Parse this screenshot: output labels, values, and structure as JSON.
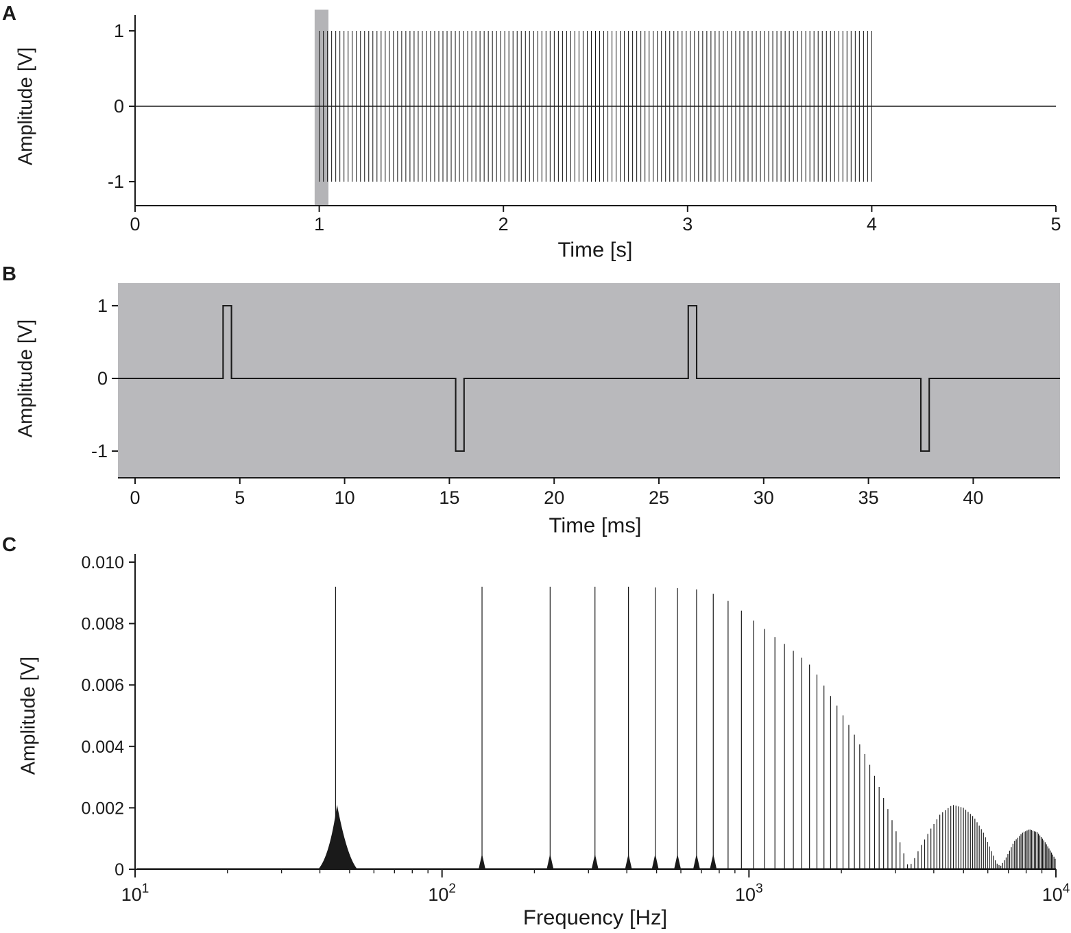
{
  "ink_color": "#1a1a1a",
  "chart_data": [
    {
      "panel_letter": "A",
      "type": "line",
      "xlabel": "Time [s]",
      "ylabel": "Amplitude [V]",
      "xlim": [
        0,
        5
      ],
      "ylim": [
        -1.15,
        1.15
      ],
      "xticks": [
        0,
        1,
        2,
        3,
        4,
        5
      ],
      "yticks": [
        1,
        0,
        -1
      ],
      "ytick_labels": [
        "1",
        "0",
        "-1"
      ],
      "series_description": "45 Hz biphasic pulse train, amplitude ±1 V, active from 1 s to 4 s, zero elsewhere; gray band marks zoom region shown in panel B",
      "pulse_train": {
        "onset_s": 1.0,
        "offset_s": 4.0,
        "rate_hz": 45,
        "amplitude_v": 1.0,
        "n_cycles": 135
      },
      "highlight_band_s": [
        0.975,
        1.05
      ],
      "highlight_color": "#b4b4b7"
    },
    {
      "panel_letter": "B",
      "type": "line",
      "xlabel": "Time [ms]",
      "ylabel": "Amplitude [V]",
      "xlim": [
        -0.8,
        44.2
      ],
      "ylim": [
        -1.3,
        1.3
      ],
      "xticks": [
        0,
        5,
        10,
        15,
        20,
        25,
        30,
        35,
        40
      ],
      "yticks": [
        1,
        0,
        -1
      ],
      "ytick_labels": [
        "1",
        "0",
        "-1"
      ],
      "background_color": "#b9b9bc",
      "series_description": "Zoom of panel A: charge-balanced alternating rectangular pulses, ±1 V, ~0.4 ms wide, 11.1 ms between phases",
      "pulses": [
        {
          "t0_ms": 4.2,
          "t1_ms": 4.6,
          "amplitude_v": 1
        },
        {
          "t0_ms": 15.3,
          "t1_ms": 15.7,
          "amplitude_v": -1
        },
        {
          "t0_ms": 26.4,
          "t1_ms": 26.8,
          "amplitude_v": 1
        },
        {
          "t0_ms": 37.5,
          "t1_ms": 37.9,
          "amplitude_v": -1
        }
      ]
    },
    {
      "panel_letter": "C",
      "type": "line",
      "xlabel": "Frequency [Hz]",
      "ylabel": "Amplitude [V]",
      "xscale": "log",
      "xlim": [
        10,
        10000
      ],
      "ylim": [
        0,
        0.0105
      ],
      "xticks": [
        {
          "value": 10,
          "base": "10",
          "exp": "1"
        },
        {
          "value": 100,
          "base": "10",
          "exp": "2"
        },
        {
          "value": 1000,
          "base": "10",
          "exp": "3"
        },
        {
          "value": 10000,
          "base": "10",
          "exp": "4"
        }
      ],
      "yticks": [
        0,
        0.002,
        0.004,
        0.006,
        0.008,
        0.01
      ],
      "ytick_labels": [
        "0",
        "0.002",
        "0.004",
        "0.006",
        "0.008",
        "0.010"
      ],
      "series_description": "Amplitude spectrum of the pulse train: line comb at odd harmonics of 45 Hz (90 Hz spacing), ~0.0092 V plateau below ~700 Hz, envelope null near 3.3 kHz, sidelobes peaking ~0.0021 V near 4.6 kHz and ~0.0013 V near 8.2 kHz",
      "harmonics": {
        "fundamental_hz": 45,
        "spacing_hz": 90,
        "max_hz": 10000
      },
      "envelope_points_hz_v": [
        [
          45,
          0.0092
        ],
        [
          200,
          0.0092
        ],
        [
          400,
          0.0092
        ],
        [
          600,
          0.00915
        ],
        [
          700,
          0.0091
        ],
        [
          800,
          0.0089
        ],
        [
          900,
          0.0086
        ],
        [
          1000,
          0.0082
        ],
        [
          1200,
          0.0076
        ],
        [
          1400,
          0.0071
        ],
        [
          1600,
          0.0066
        ],
        [
          1800,
          0.0058
        ],
        [
          2000,
          0.0051
        ],
        [
          2200,
          0.0044
        ],
        [
          2400,
          0.0037
        ],
        [
          2600,
          0.0029
        ],
        [
          2800,
          0.0021
        ],
        [
          3000,
          0.0013
        ],
        [
          3200,
          0.0005
        ],
        [
          3300,
          0.0001
        ],
        [
          3400,
          0.0002
        ],
        [
          3600,
          0.0007
        ],
        [
          3900,
          0.0013
        ],
        [
          4200,
          0.0018
        ],
        [
          4600,
          0.0021
        ],
        [
          5000,
          0.002
        ],
        [
          5400,
          0.0017
        ],
        [
          5800,
          0.0012
        ],
        [
          6100,
          0.0007
        ],
        [
          6400,
          0.0002
        ],
        [
          6600,
          0.0001
        ],
        [
          6900,
          0.0004
        ],
        [
          7300,
          0.0009
        ],
        [
          7800,
          0.0012
        ],
        [
          8200,
          0.0013
        ],
        [
          8700,
          0.0012
        ],
        [
          9200,
          0.0009
        ],
        [
          9600,
          0.0006
        ],
        [
          10000,
          0.0003
        ]
      ],
      "fundamental_skirt": {
        "f_lo_hz": 39.5,
        "f_peak_hz": 45.5,
        "f_hi_hz": 53,
        "amp_v": 0.0021
      }
    }
  ]
}
